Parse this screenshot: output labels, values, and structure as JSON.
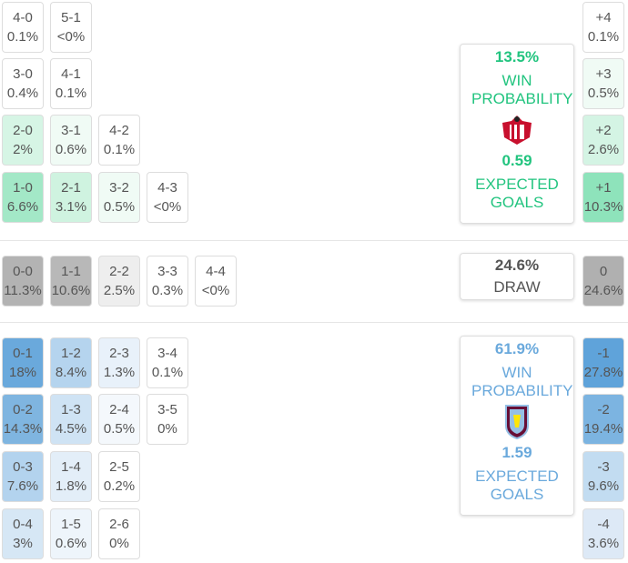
{
  "home": {
    "rows": [
      [
        {
          "score": "4-0",
          "prob": "0.1%",
          "color": "#ffffff"
        },
        {
          "score": "5-1",
          "prob": "<0%",
          "color": "#ffffff"
        }
      ],
      [
        {
          "score": "3-0",
          "prob": "0.4%",
          "color": "#ffffff"
        },
        {
          "score": "4-1",
          "prob": "0.1%",
          "color": "#ffffff"
        }
      ],
      [
        {
          "score": "2-0",
          "prob": "2%",
          "color": "#d6f5e5"
        },
        {
          "score": "3-1",
          "prob": "0.6%",
          "color": "#f0fbf5"
        },
        {
          "score": "4-2",
          "prob": "0.1%",
          "color": "#ffffff"
        }
      ],
      [
        {
          "score": "1-0",
          "prob": "6.6%",
          "color": "#a3e8c7"
        },
        {
          "score": "2-1",
          "prob": "3.1%",
          "color": "#cff3e0"
        },
        {
          "score": "3-2",
          "prob": "0.5%",
          "color": "#f0fbf5"
        },
        {
          "score": "4-3",
          "prob": "<0%",
          "color": "#ffffff"
        }
      ]
    ],
    "win_probability": "13.5%",
    "win_label": "WIN PROBABILITY",
    "expected_goals": "0.59",
    "xg_label": "EXPECTED GOALS",
    "color": "#22c47f"
  },
  "draw": {
    "rows": [
      [
        {
          "score": "0-0",
          "prob": "11.3%",
          "color": "#b3b3b3"
        },
        {
          "score": "1-1",
          "prob": "10.6%",
          "color": "#b8b8b8"
        },
        {
          "score": "2-2",
          "prob": "2.5%",
          "color": "#eeeeee"
        },
        {
          "score": "3-3",
          "prob": "0.3%",
          "color": "#ffffff"
        },
        {
          "score": "4-4",
          "prob": "<0%",
          "color": "#ffffff"
        }
      ]
    ],
    "probability": "24.6%",
    "label": "DRAW",
    "color": "#555555"
  },
  "away": {
    "rows": [
      [
        {
          "score": "0-1",
          "prob": "18%",
          "color": "#6aa9dc"
        },
        {
          "score": "1-2",
          "prob": "8.4%",
          "color": "#b5d4ee"
        },
        {
          "score": "2-3",
          "prob": "1.3%",
          "color": "#e8f1fa"
        },
        {
          "score": "3-4",
          "prob": "0.1%",
          "color": "#ffffff"
        }
      ],
      [
        {
          "score": "0-2",
          "prob": "14.3%",
          "color": "#7fb5e0"
        },
        {
          "score": "1-3",
          "prob": "4.5%",
          "color": "#cfe3f4"
        },
        {
          "score": "2-4",
          "prob": "0.5%",
          "color": "#f4f8fc"
        },
        {
          "score": "3-5",
          "prob": "0%",
          "color": "#ffffff"
        }
      ],
      [
        {
          "score": "0-3",
          "prob": "7.6%",
          "color": "#b3d3ee"
        },
        {
          "score": "1-4",
          "prob": "1.8%",
          "color": "#e3eef8"
        },
        {
          "score": "2-5",
          "prob": "0.2%",
          "color": "#ffffff"
        }
      ],
      [
        {
          "score": "0-4",
          "prob": "3%",
          "color": "#d6e7f5"
        },
        {
          "score": "1-5",
          "prob": "0.6%",
          "color": "#eef5fb"
        },
        {
          "score": "2-6",
          "prob": "0%",
          "color": "#ffffff"
        }
      ]
    ],
    "win_probability": "61.9%",
    "win_label": "WIN PROBABILITY",
    "expected_goals": "1.59",
    "xg_label": "EXPECTED GOALS",
    "color": "#6aa9dc"
  },
  "margins": [
    {
      "label": "+4",
      "prob": "0.1%",
      "color": "#ffffff"
    },
    {
      "label": "+3",
      "prob": "0.5%",
      "color": "#f0fbf5"
    },
    {
      "label": "+2",
      "prob": "2.6%",
      "color": "#d4f4e4"
    },
    {
      "label": "+1",
      "prob": "10.3%",
      "color": "#8ee3bb"
    },
    {
      "label": "0",
      "prob": "24.6%",
      "color": "#b0b0b0"
    },
    {
      "label": "-1",
      "prob": "27.8%",
      "color": "#5fa3da"
    },
    {
      "label": "-2",
      "prob": "19.4%",
      "color": "#7cb4e1"
    },
    {
      "label": "-3",
      "prob": "9.6%",
      "color": "#c2dcf1"
    },
    {
      "label": "-4",
      "prob": "3.6%",
      "color": "#dde9f6"
    }
  ]
}
